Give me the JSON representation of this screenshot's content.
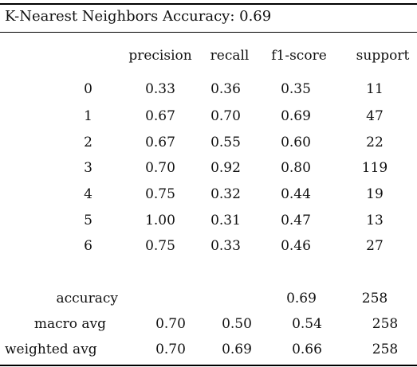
{
  "title": "K-Nearest Neighbors Accuracy: 0.69",
  "headers": [
    "precision",
    "recall",
    "f1-score",
    "support"
  ],
  "rows": [
    {
      "label": "0",
      "precision": "0.33",
      "recall": "0.36",
      "f1": "0.35",
      "support": "11"
    },
    {
      "label": "1",
      "precision": "0.67",
      "recall": "0.70",
      "f1": "0.69",
      "support": "47"
    },
    {
      "label": "2",
      "precision": "0.67",
      "recall": "0.55",
      "f1": "0.60",
      "support": "22"
    },
    {
      "label": "3",
      "precision": "0.70",
      "recall": "0.92",
      "f1": "0.80",
      "support": "119"
    },
    {
      "label": "4",
      "precision": "0.75",
      "recall": "0.32",
      "f1": "0.44",
      "support": "19"
    },
    {
      "label": "5",
      "precision": "1.00",
      "recall": "0.31",
      "f1": "0.47",
      "support": "13"
    },
    {
      "label": "6",
      "precision": "0.75",
      "recall": "0.33",
      "f1": "0.46",
      "support": "27"
    }
  ],
  "summary": [
    {
      "label": "accuracy",
      "precision": "",
      "recall": "",
      "f1": "0.69",
      "support": "258"
    },
    {
      "label": "macro avg",
      "precision": "0.70",
      "recall": "0.50",
      "f1": "0.54",
      "support": "258"
    },
    {
      "label": "weighted avg",
      "precision": "0.70",
      "recall": "0.69",
      "f1": "0.66",
      "support": "258"
    }
  ]
}
